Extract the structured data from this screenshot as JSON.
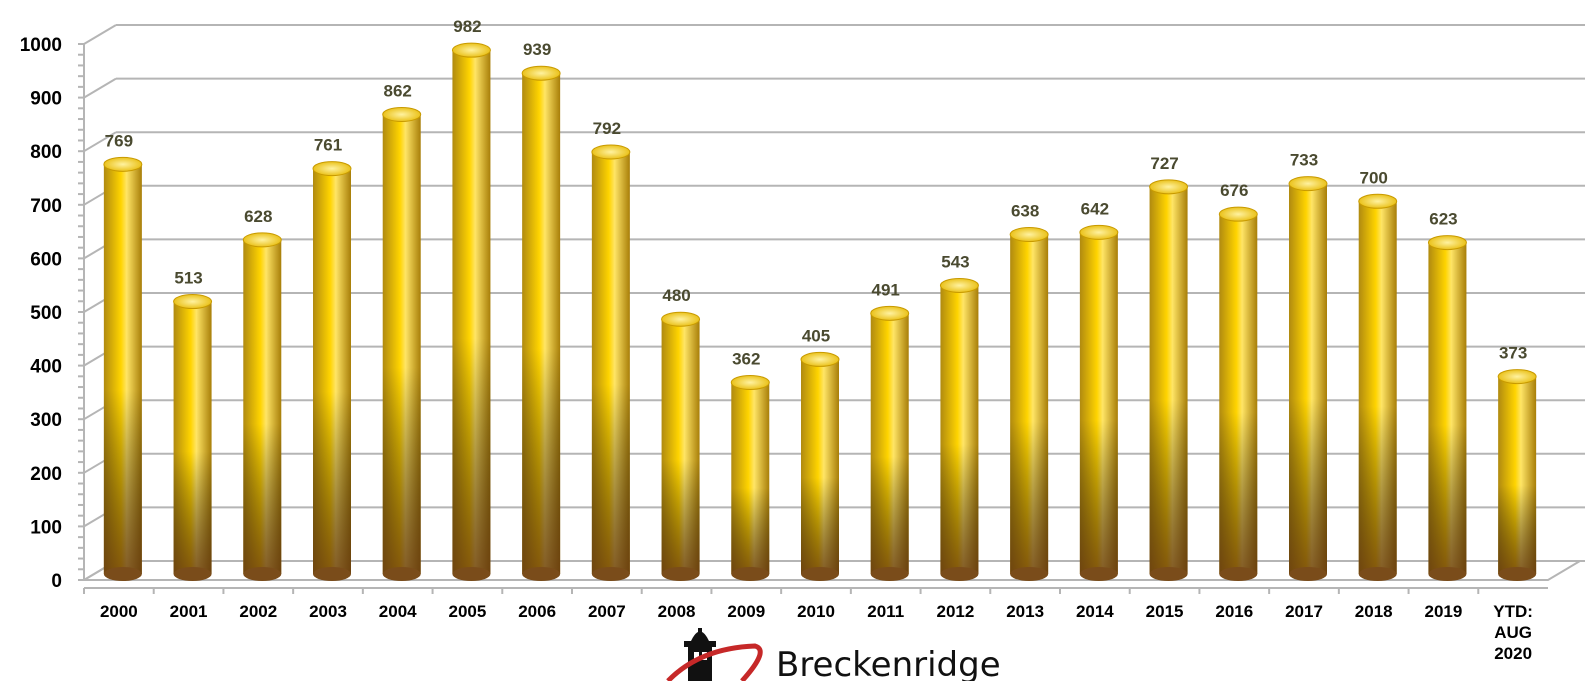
{
  "chart_data": {
    "type": "bar",
    "categories": [
      "2000",
      "2001",
      "2002",
      "2003",
      "2004",
      "2005",
      "2006",
      "2007",
      "2008",
      "2009",
      "2010",
      "2011",
      "2012",
      "2013",
      "2014",
      "2015",
      "2016",
      "2017",
      "2018",
      "2019",
      "YTD: AUG 2020"
    ],
    "values": [
      769,
      513,
      628,
      761,
      862,
      982,
      939,
      792,
      480,
      362,
      405,
      491,
      543,
      638,
      642,
      727,
      676,
      733,
      700,
      623,
      373
    ],
    "ylim": [
      0,
      1000
    ],
    "yticks": [
      0,
      100,
      200,
      300,
      400,
      500,
      600,
      700,
      800,
      900,
      1000
    ],
    "grid": true,
    "data_labels": true,
    "bar_style": "3d-cylinder",
    "colors": {
      "bar_top": "#ffd84a",
      "bar_mid": "#f5c400",
      "bar_bottom": "#8a5a22",
      "grid": "#b5b5b5",
      "label": "#4a4a30"
    }
  },
  "logo": {
    "text": "Breckenridge"
  }
}
